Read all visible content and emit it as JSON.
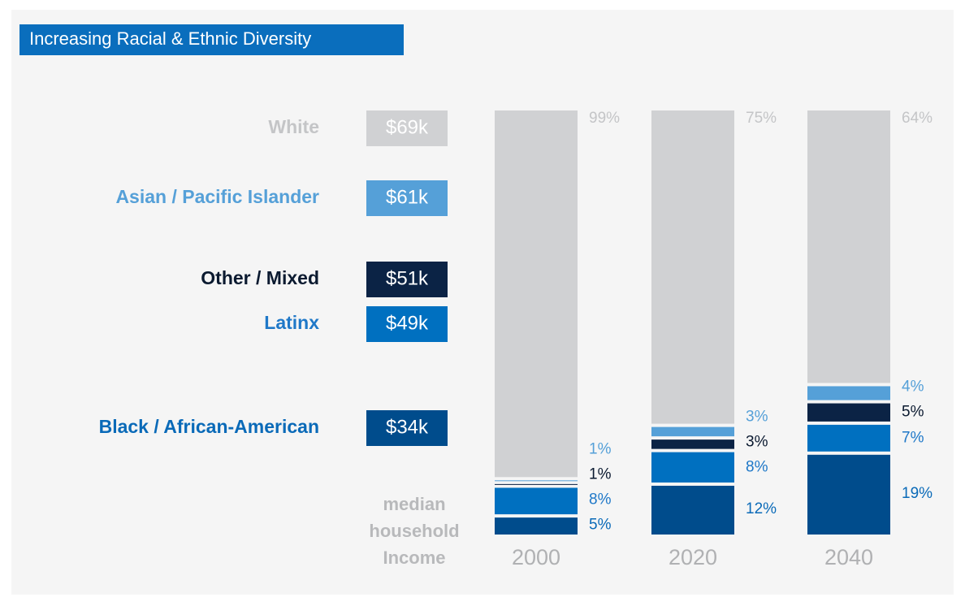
{
  "chart_data": {
    "type": "bar",
    "stacked": "percent",
    "title": "Increasing Racial & Ethnic Diversity",
    "income_axis_label": "median household Income",
    "categories": [
      "2000",
      "2020",
      "2040"
    ],
    "series": [
      {
        "name": "Black / African-American",
        "color": "#004c8c",
        "text_color": "#0a6ab8",
        "income": 34,
        "income_label": "$34k",
        "values": [
          5,
          12,
          19
        ],
        "value_labels": [
          "5%",
          "12%",
          "19%"
        ]
      },
      {
        "name": "Latinx",
        "color": "#0070c0",
        "text_color": "#1f78c8",
        "income": 49,
        "income_label": "$49k",
        "values": [
          8,
          8,
          7
        ],
        "value_labels": [
          "8%",
          "8%",
          "7%"
        ]
      },
      {
        "name": "Other / Mixed",
        "color": "#0b2345",
        "text_color": "#0b1a30",
        "income": 51,
        "income_label": "$51k",
        "values": [
          1,
          3,
          5
        ],
        "value_labels": [
          "1%",
          "3%",
          "5%"
        ]
      },
      {
        "name": "Asian / Pacific Islander",
        "color": "#55a0d8",
        "text_color": "#55a0d8",
        "income": 61,
        "income_label": "$61k",
        "values": [
          1,
          3,
          4
        ],
        "value_labels": [
          "1%",
          "3%",
          "4%"
        ]
      },
      {
        "name": "White",
        "color": "#d0d1d3",
        "text_color": "#c4c5c7",
        "income": 69,
        "income_label": "$69k",
        "values": [
          99,
          75,
          64
        ],
        "value_labels": [
          "99%",
          "75%",
          "64%"
        ]
      }
    ]
  }
}
